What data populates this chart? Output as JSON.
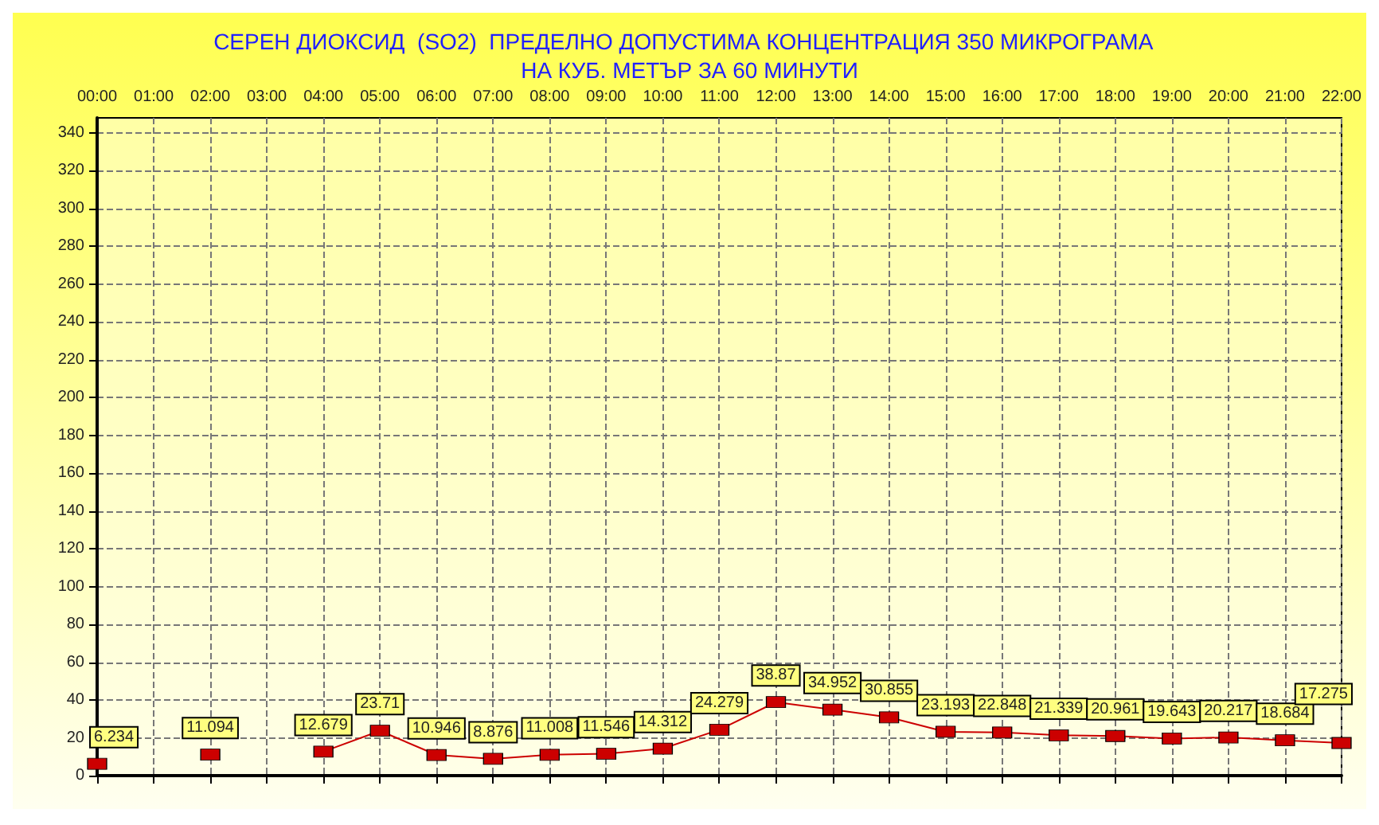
{
  "chart_data": {
    "type": "line",
    "title": "СЕРЕН ДИОКСИД  (SO2)  ПРЕДЕЛНО ДОПУСТИМА КОНЦЕНТРАЦИЯ 350 МИКРОГРАМА  НА КУБ. МЕТЪР ЗА 60 МИНУТИ",
    "categories": [
      "00:00",
      "01:00",
      "02:00",
      "03:00",
      "04:00",
      "05:00",
      "06:00",
      "07:00",
      "08:00",
      "09:00",
      "10:00",
      "11:00",
      "12:00",
      "13:00",
      "14:00",
      "15:00",
      "16:00",
      "17:00",
      "18:00",
      "19:00",
      "20:00",
      "21:00",
      "22:00"
    ],
    "series": [
      {
        "color": "#cc0000",
        "values": [
          6.234,
          null,
          11.094,
          null,
          12.679,
          23.71,
          10.946,
          8.876,
          11.008,
          11.546,
          14.312,
          24.279,
          38.87,
          34.952,
          30.855,
          23.193,
          22.848,
          21.339,
          20.961,
          19.643,
          20.217,
          18.684,
          17.275
        ]
      }
    ],
    "ylim": [
      0,
      348
    ],
    "yticks": [
      0,
      20,
      40,
      60,
      80,
      100,
      120,
      140,
      160,
      180,
      200,
      220,
      240,
      260,
      280,
      300,
      320,
      340
    ],
    "grid": true,
    "marker": "square",
    "data_labels": true
  }
}
